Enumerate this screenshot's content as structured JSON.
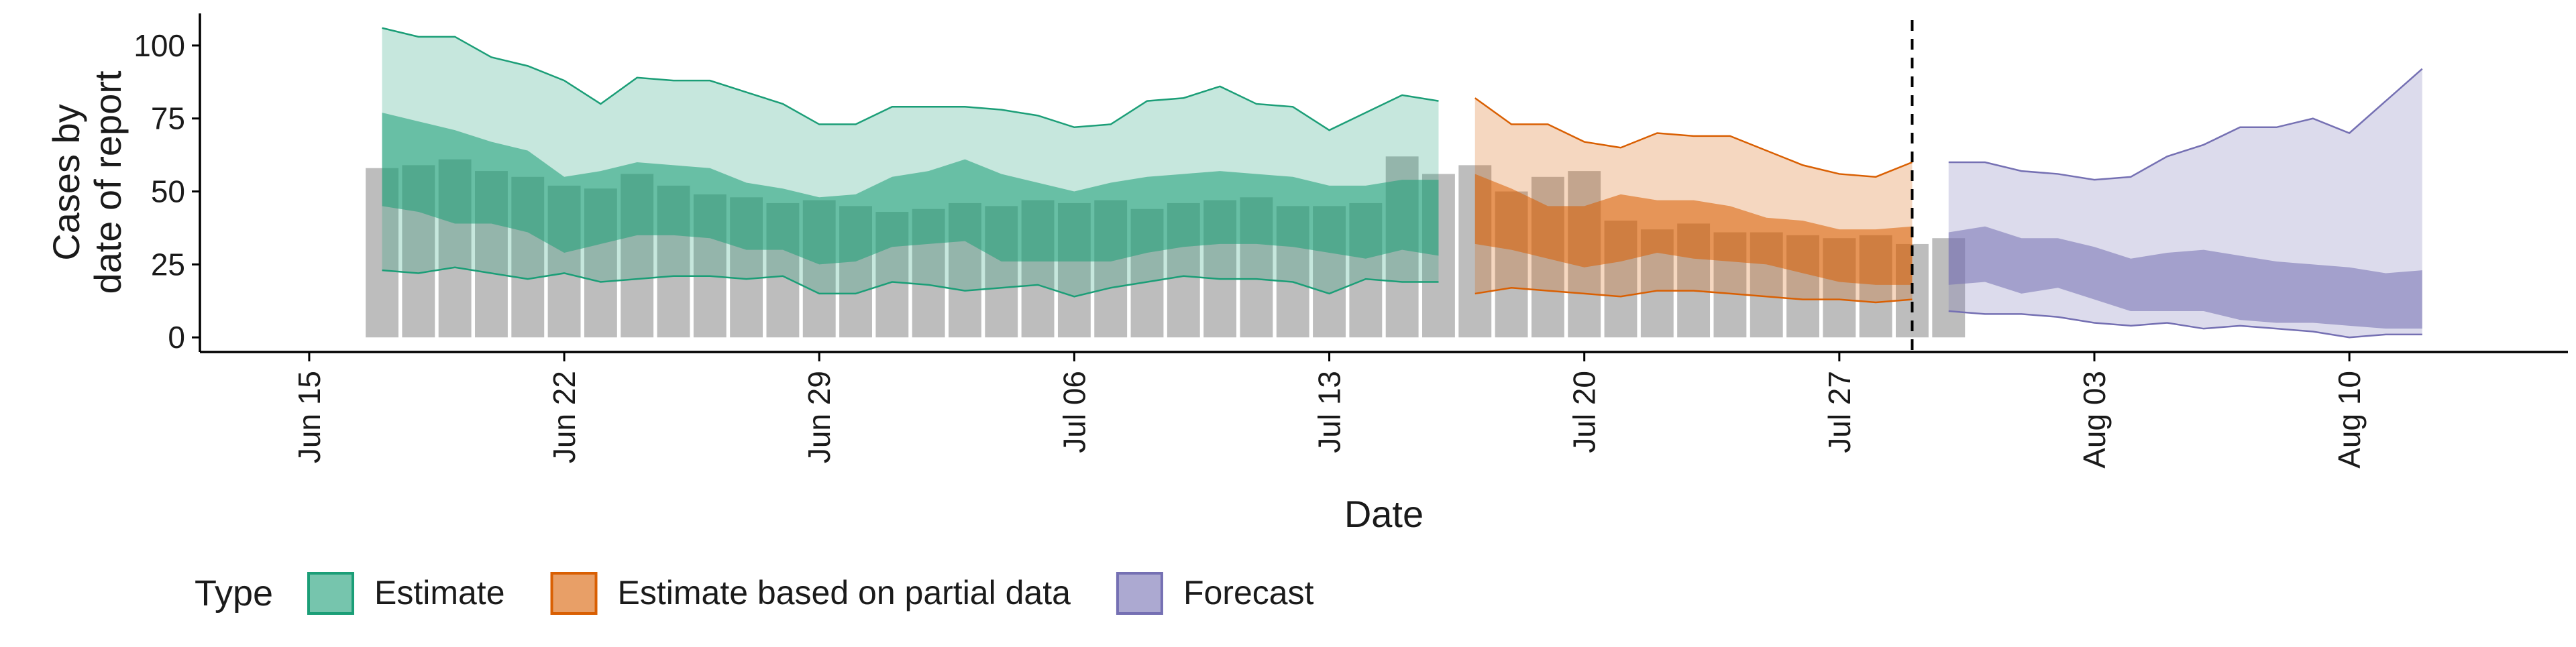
{
  "chart_data": {
    "type": "area",
    "title": "",
    "xlabel": "Date",
    "ylabel": [
      "Cases by",
      "date of report"
    ],
    "ylim": [
      -5,
      111
    ],
    "xlim": [
      "2020-06-12",
      "2020-08-16"
    ],
    "grid": false,
    "legend_position": "bottom",
    "legend_title": "Type",
    "y_ticks": [
      {
        "value": 0,
        "label": "0"
      },
      {
        "value": 25,
        "label": "25"
      },
      {
        "value": 50,
        "label": "50"
      },
      {
        "value": 75,
        "label": "75"
      },
      {
        "value": 100,
        "label": "100"
      }
    ],
    "x_ticks": [
      {
        "date": "2020-06-15",
        "label": "Jun 15"
      },
      {
        "date": "2020-06-22",
        "label": "Jun 22"
      },
      {
        "date": "2020-06-29",
        "label": "Jun 29"
      },
      {
        "date": "2020-07-06",
        "label": "Jul 06"
      },
      {
        "date": "2020-07-13",
        "label": "Jul 13"
      },
      {
        "date": "2020-07-20",
        "label": "Jul 20"
      },
      {
        "date": "2020-07-27",
        "label": "Jul 27"
      },
      {
        "date": "2020-08-03",
        "label": "Aug 03"
      },
      {
        "date": "2020-08-10",
        "label": "Aug 10"
      }
    ],
    "reference_line_date": "2020-07-29",
    "observed_bars": {
      "start_date": "2020-06-17",
      "color": "#bdbdbd",
      "values": [
        58,
        59,
        61,
        57,
        55,
        52,
        51,
        56,
        52,
        49,
        48,
        46,
        47,
        45,
        43,
        44,
        46,
        45,
        47,
        46,
        47,
        44,
        46,
        47,
        48,
        45,
        45,
        46,
        62,
        56,
        59,
        50,
        55,
        57,
        40,
        37,
        39,
        36,
        36,
        35,
        34,
        35,
        32,
        34
      ]
    },
    "series": [
      {
        "name": "Estimate",
        "color": "#1b9e77",
        "start_date": "2020-06-17",
        "outer_upper": [
          106,
          103,
          103,
          96,
          93,
          88,
          80,
          89,
          88,
          88,
          84,
          80,
          73,
          73,
          79,
          79,
          79,
          78,
          76,
          72,
          73,
          81,
          82,
          86,
          80,
          79,
          71,
          77,
          83,
          81
        ],
        "inner_upper": [
          77,
          74,
          71,
          67,
          64,
          55,
          57,
          60,
          59,
          58,
          53,
          51,
          48,
          49,
          55,
          57,
          61,
          56,
          53,
          50,
          53,
          55,
          56,
          57,
          56,
          55,
          52,
          52,
          54,
          54
        ],
        "inner_lower": [
          45,
          43,
          39,
          39,
          36,
          29,
          32,
          35,
          35,
          34,
          30,
          30,
          25,
          26,
          31,
          32,
          33,
          26,
          26,
          26,
          26,
          29,
          31,
          32,
          32,
          31,
          29,
          27,
          30,
          28
        ],
        "outer_lower": [
          23,
          22,
          24,
          22,
          20,
          22,
          19,
          20,
          21,
          21,
          20,
          21,
          15,
          15,
          19,
          18,
          16,
          17,
          18,
          14,
          17,
          19,
          21,
          20,
          20,
          19,
          15,
          20,
          19,
          19
        ]
      },
      {
        "name": "Estimate based on partial data",
        "color": "#d95f02",
        "start_date": "2020-07-17",
        "outer_upper": [
          82,
          73,
          73,
          67,
          65,
          70,
          69,
          69,
          64,
          59,
          56,
          55,
          60
        ],
        "inner_upper": [
          56,
          51,
          45,
          45,
          49,
          47,
          47,
          45,
          41,
          40,
          37,
          37,
          38
        ],
        "inner_lower": [
          32,
          30,
          27,
          24,
          26,
          29,
          27,
          26,
          25,
          22,
          19,
          18,
          18
        ],
        "outer_lower": [
          15,
          17,
          16,
          15,
          14,
          16,
          16,
          15,
          14,
          13,
          13,
          12,
          13
        ]
      },
      {
        "name": "Forecast",
        "color": "#7570b3",
        "start_date": "2020-07-30",
        "outer_upper": [
          60,
          60,
          57,
          56,
          54,
          55,
          62,
          66,
          72,
          72,
          75,
          70,
          81,
          92
        ],
        "inner_upper": [
          36,
          38,
          34,
          34,
          31,
          27,
          29,
          30,
          28,
          26,
          25,
          24,
          22,
          23
        ],
        "inner_lower": [
          18,
          19,
          15,
          17,
          13,
          9,
          9,
          9,
          6,
          5,
          5,
          4,
          3,
          3
        ],
        "outer_lower": [
          9,
          8,
          8,
          7,
          5,
          4,
          5,
          3,
          4,
          3,
          2,
          0,
          1,
          1
        ]
      }
    ]
  }
}
